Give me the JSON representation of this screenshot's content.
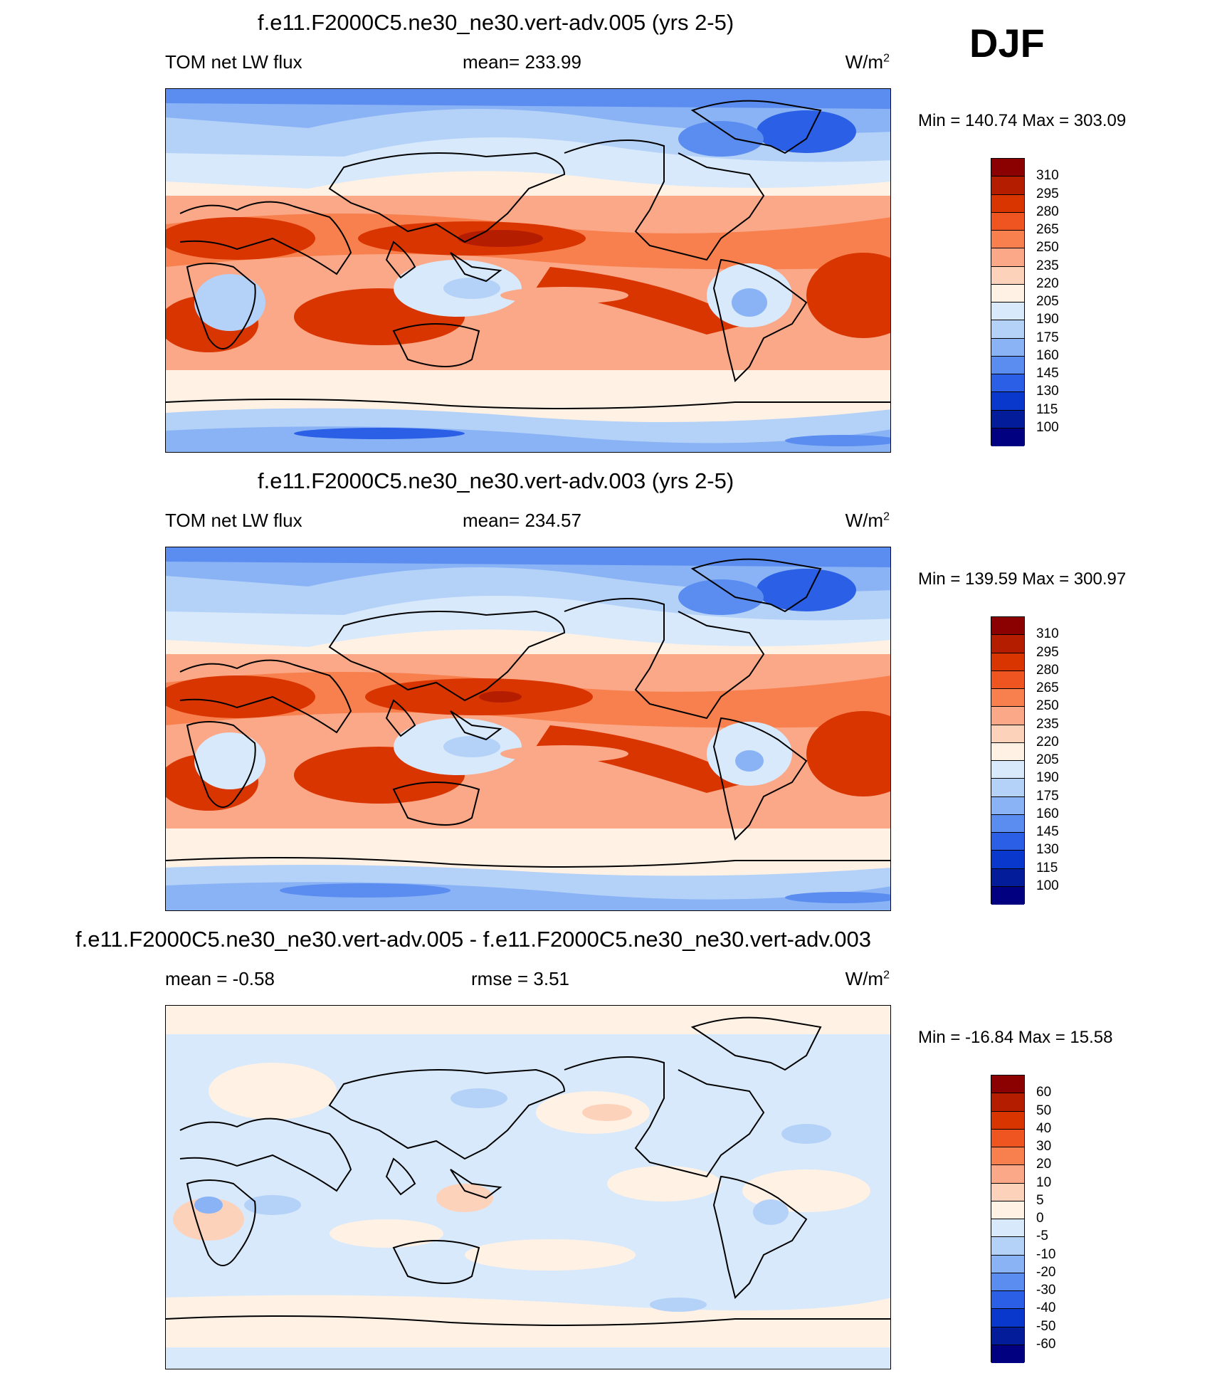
{
  "season": "DJF",
  "panels": [
    {
      "title": "f.e11.F2000C5.ne30_ne30.vert-adv.005 (yrs 2-5)",
      "left_label": "TOM net LW flux",
      "mid_label": "mean= 233.99",
      "units": "W/m",
      "units_sup": "2",
      "minmax": "Min = 140.74 Max = 303.09",
      "colorbar": {
        "levels": [
          "310",
          "295",
          "280",
          "265",
          "250",
          "235",
          "220",
          "205",
          "190",
          "175",
          "160",
          "145",
          "130",
          "115",
          "100"
        ],
        "colors": [
          "#8b0000",
          "#b51d00",
          "#d93500",
          "#ee5520",
          "#f8804e",
          "#fba888",
          "#fdd2bb",
          "#fff1e4",
          "#d8e9fb",
          "#b4d1f8",
          "#8ab3f5",
          "#5b8cf0",
          "#2a5fe6",
          "#0838cc",
          "#031c9a",
          "#000080"
        ]
      }
    },
    {
      "title": "f.e11.F2000C5.ne30_ne30.vert-adv.003 (yrs 2-5)",
      "left_label": "TOM net LW flux",
      "mid_label": "mean= 234.57",
      "units": "W/m",
      "units_sup": "2",
      "minmax": "Min = 139.59 Max = 300.97",
      "colorbar": {
        "levels": [
          "310",
          "295",
          "280",
          "265",
          "250",
          "235",
          "220",
          "205",
          "190",
          "175",
          "160",
          "145",
          "130",
          "115",
          "100"
        ],
        "colors": [
          "#8b0000",
          "#b51d00",
          "#d93500",
          "#ee5520",
          "#f8804e",
          "#fba888",
          "#fdd2bb",
          "#fff1e4",
          "#d8e9fb",
          "#b4d1f8",
          "#8ab3f5",
          "#5b8cf0",
          "#2a5fe6",
          "#0838cc",
          "#031c9a",
          "#000080"
        ]
      }
    },
    {
      "title": "f.e11.F2000C5.ne30_ne30.vert-adv.005 - f.e11.F2000C5.ne30_ne30.vert-adv.003",
      "left_label": "mean =  -0.58",
      "mid_label": "rmse =   3.51",
      "units": "W/m",
      "units_sup": "2",
      "minmax": "Min = -16.84 Max =  15.58",
      "colorbar": {
        "levels": [
          "60",
          "50",
          "40",
          "30",
          "20",
          "10",
          "5",
          "0",
          "-5",
          "-10",
          "-20",
          "-30",
          "-40",
          "-50",
          "-60"
        ],
        "colors": [
          "#8b0000",
          "#b51d00",
          "#d93500",
          "#ee5520",
          "#f8804e",
          "#fba888",
          "#fdd2bb",
          "#fff1e4",
          "#d8e9fb",
          "#b4d1f8",
          "#8ab3f5",
          "#5b8cf0",
          "#2a5fe6",
          "#0838cc",
          "#031c9a",
          "#000080"
        ]
      }
    }
  ]
}
